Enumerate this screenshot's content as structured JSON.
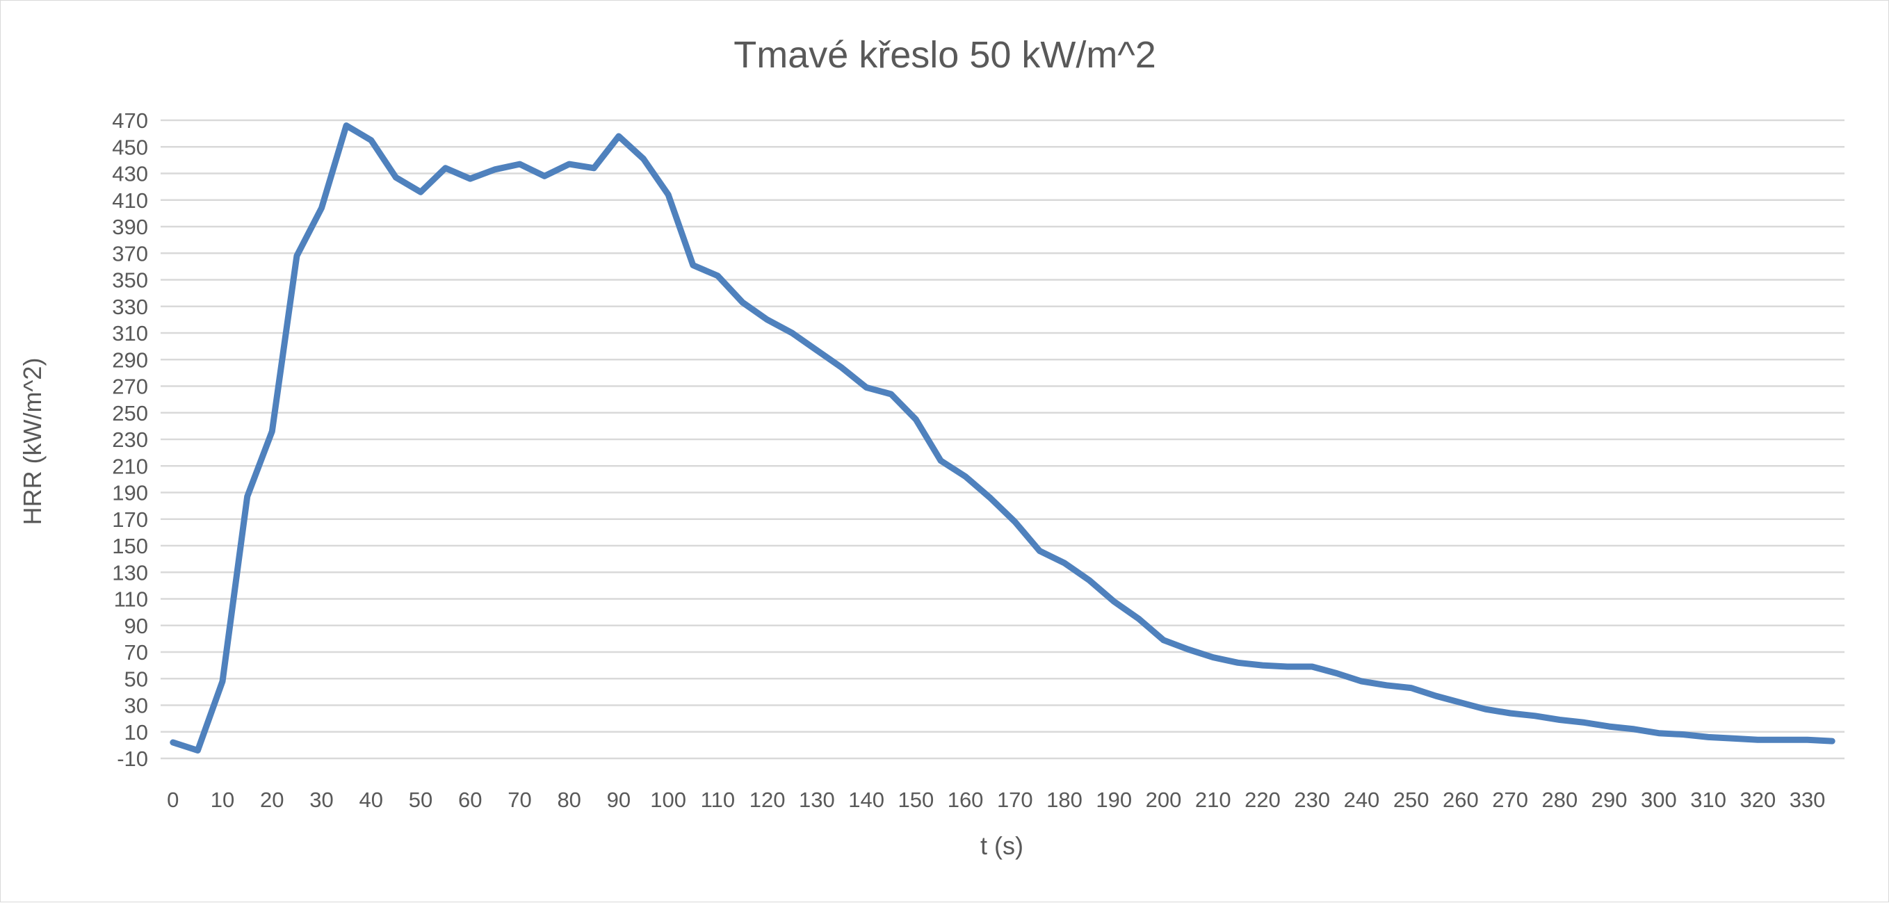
{
  "chart_data": {
    "type": "line",
    "title": "Tmavé křeslo 50 kW/m^2",
    "xlabel": "t (s)",
    "ylabel": "HRR (kW/m^2)",
    "ylim": [
      -10,
      470
    ],
    "yticks": [
      -10,
      10,
      30,
      50,
      70,
      90,
      110,
      130,
      150,
      170,
      190,
      210,
      230,
      250,
      270,
      290,
      310,
      330,
      350,
      370,
      390,
      410,
      430,
      450,
      470
    ],
    "xtick_labels": [
      "0",
      "10",
      "20",
      "30",
      "40",
      "50",
      "60",
      "70",
      "80",
      "90",
      "100",
      "110",
      "120",
      "130",
      "140",
      "150",
      "160",
      "170",
      "180",
      "190",
      "200",
      "210",
      "220",
      "230",
      "240",
      "250",
      "260",
      "270",
      "280",
      "290",
      "300",
      "310",
      "320",
      "330"
    ],
    "grid": true,
    "legend": "none",
    "series_color": "#4f81bd",
    "series": [
      {
        "name": "HRR",
        "x": [
          0,
          5,
          10,
          15,
          20,
          25,
          30,
          35,
          40,
          45,
          50,
          55,
          60,
          65,
          70,
          75,
          80,
          85,
          90,
          95,
          100,
          105,
          110,
          115,
          120,
          125,
          130,
          135,
          140,
          145,
          150,
          155,
          160,
          165,
          170,
          175,
          180,
          185,
          190,
          195,
          200,
          205,
          210,
          215,
          220,
          225,
          230,
          235,
          240,
          245,
          250,
          255,
          260,
          265,
          270,
          275,
          280,
          285,
          290,
          295,
          300,
          305,
          310,
          315,
          320,
          325,
          330,
          335
        ],
        "values": [
          2,
          -4,
          48,
          187,
          236,
          368,
          404,
          466,
          455,
          427,
          416,
          434,
          426,
          433,
          437,
          428,
          437,
          434,
          458,
          441,
          414,
          361,
          353,
          333,
          320,
          310,
          297,
          284,
          269,
          264,
          245,
          214,
          202,
          186,
          168,
          146,
          137,
          124,
          108,
          95,
          79,
          72,
          66,
          62,
          60,
          59,
          59,
          54,
          48,
          45,
          43,
          37,
          32,
          27,
          24,
          22,
          19,
          17,
          14,
          12,
          9,
          8,
          6,
          5,
          4,
          4,
          4,
          3
        ]
      }
    ]
  }
}
